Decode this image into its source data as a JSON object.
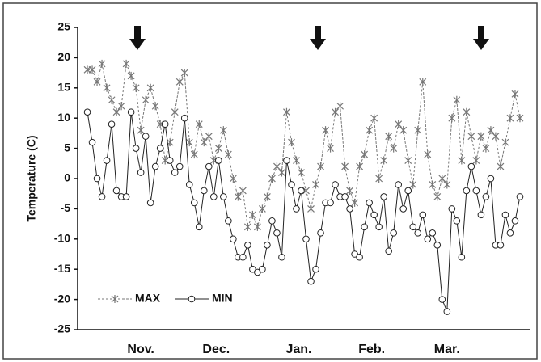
{
  "chart_data": {
    "type": "line",
    "ylabel": "Temperature (C)",
    "x": [
      0,
      2,
      4,
      6,
      8,
      10,
      12,
      14,
      16,
      18,
      20,
      22,
      24,
      26,
      28,
      30,
      32,
      34,
      36,
      38,
      40,
      42,
      44,
      46,
      48,
      50,
      52,
      54,
      56,
      58,
      60,
      62,
      64,
      66,
      68,
      70,
      72,
      74,
      76,
      78,
      80,
      82,
      84,
      86,
      88,
      90,
      92,
      94,
      96,
      98,
      100,
      102,
      104,
      106,
      108,
      110,
      112,
      114,
      116,
      118,
      120,
      122,
      124,
      126,
      128,
      130,
      132,
      134,
      136,
      138,
      140,
      142,
      144,
      146,
      148,
      150,
      152,
      154,
      156,
      158,
      160,
      162,
      164,
      166,
      168,
      170,
      172,
      174,
      176,
      178
    ],
    "xlim": [
      -4,
      182
    ],
    "xticks": [
      {
        "value": 22,
        "label": "Nov."
      },
      {
        "value": 53,
        "label": "Dec."
      },
      {
        "value": 87,
        "label": "Jan."
      },
      {
        "value": 117,
        "label": "Feb."
      },
      {
        "value": 148,
        "label": "Mar."
      }
    ],
    "ylim": [
      -25,
      25
    ],
    "yticks": [
      -25,
      -20,
      -15,
      -10,
      -5,
      0,
      5,
      10,
      15,
      20,
      25
    ],
    "legend": "lower left",
    "series": [
      {
        "name": "MAX",
        "color": "#777777",
        "marker": "x",
        "dashed": true,
        "values": [
          18,
          18,
          16,
          19,
          15,
          13,
          11,
          12,
          19,
          17,
          15,
          8,
          13,
          15,
          12,
          9,
          3,
          6,
          11,
          16,
          17.5,
          6,
          4,
          9,
          6,
          7,
          3,
          5,
          8,
          4,
          0,
          -3,
          -2,
          -8,
          -6,
          -8,
          -5,
          -3,
          0,
          2,
          1,
          11,
          6,
          3,
          1,
          -2,
          -5,
          -1,
          2,
          8,
          5,
          11,
          12,
          2,
          -2,
          -4,
          2,
          4,
          8,
          10,
          0,
          3,
          7,
          5,
          9,
          8,
          3,
          -1,
          8,
          16,
          4,
          -1,
          -3,
          0,
          -1,
          10,
          13,
          3,
          11,
          7,
          3,
          7,
          5,
          8,
          7,
          2,
          6,
          10,
          14,
          10
        ]
      },
      {
        "name": "MIN",
        "color": "#222222",
        "marker": "o",
        "dashed": false,
        "values": [
          11,
          6,
          0,
          -3,
          3,
          9,
          -2,
          -3,
          -3,
          11,
          5,
          1,
          7,
          -4,
          2,
          5,
          9,
          3,
          1,
          2,
          10,
          -1,
          -4,
          -8,
          -2,
          2,
          -3,
          3,
          -3,
          -7,
          -10,
          -13,
          -13,
          -11,
          -15,
          -15.5,
          -15,
          -11,
          -7,
          -9,
          -13,
          3,
          -1,
          -5,
          -2,
          -10,
          -17,
          -15,
          -9,
          -4,
          -4,
          -1,
          -3,
          -3,
          -5,
          -12.5,
          -13,
          -8,
          -4,
          -6,
          -8,
          -3,
          -12,
          -9,
          -1,
          -5,
          -2,
          -8,
          -9,
          -6,
          -10,
          -9,
          -11,
          -20,
          -22,
          -5,
          -7,
          -13,
          -2,
          2,
          -2,
          -6,
          -3,
          0,
          -11,
          -11,
          -6,
          -9,
          -7,
          -3
        ]
      }
    ]
  }
}
